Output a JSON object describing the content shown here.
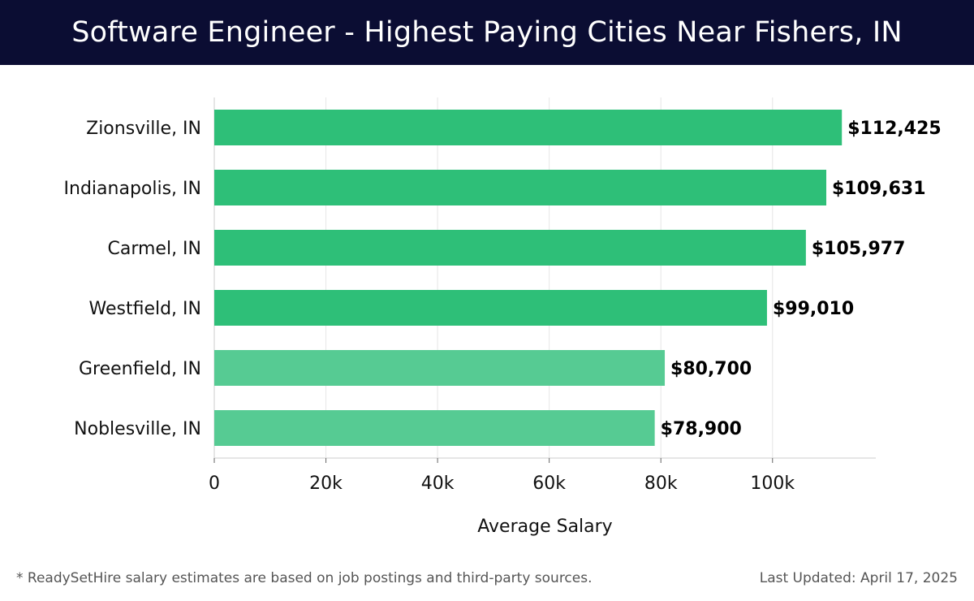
{
  "header": {
    "title": "Software Engineer - Highest Paying Cities Near Fishers, IN"
  },
  "footer": {
    "note": "* ReadySetHire salary estimates are based on job postings and third-party sources.",
    "updated": "Last Updated: April 17, 2025"
  },
  "colors": {
    "header_bg": "#0b0d33",
    "bar_top": "#2ebf78",
    "bar_lower": "#56cb93"
  },
  "chart_data": {
    "type": "bar",
    "orientation": "horizontal",
    "categories": [
      "Zionsville, IN",
      "Indianapolis, IN",
      "Carmel, IN",
      "Westfield, IN",
      "Greenfield, IN",
      "Noblesville, IN"
    ],
    "values": [
      112425,
      109631,
      105977,
      99010,
      80700,
      78900
    ],
    "value_labels": [
      "$112,425",
      "$109,631",
      "$105,977",
      "$99,010",
      "$80,700",
      "$78,900"
    ],
    "bar_shades": [
      "top",
      "top",
      "top",
      "top",
      "lower",
      "lower"
    ],
    "xlabel": "Average Salary",
    "xlim": [
      0,
      118500
    ],
    "xticks": [
      0,
      20000,
      40000,
      60000,
      80000,
      100000
    ],
    "xtick_labels": [
      "0",
      "20k",
      "40k",
      "60k",
      "80k",
      "100k"
    ],
    "grid": true
  }
}
